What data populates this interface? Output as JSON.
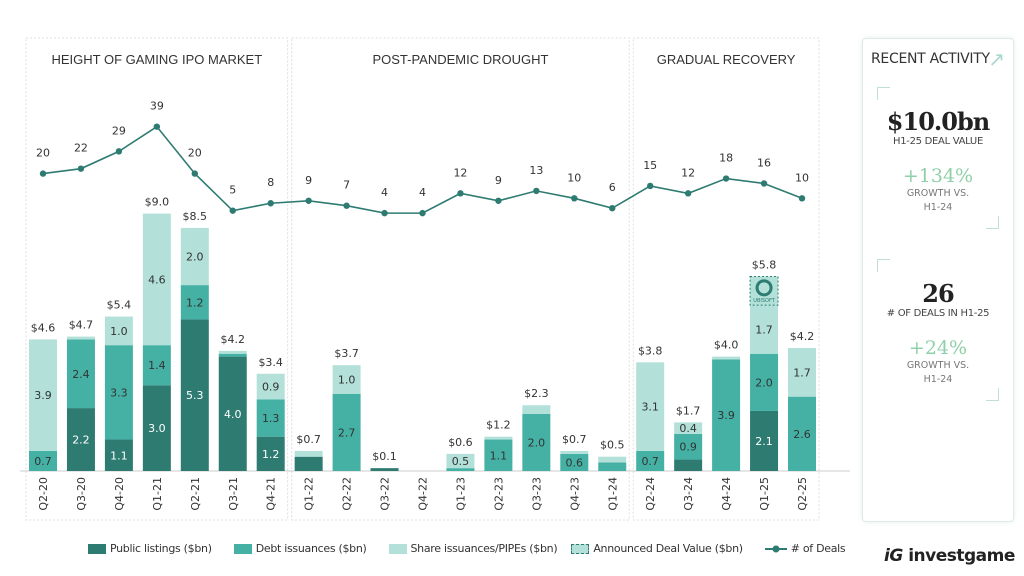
{
  "chart_data": {
    "type": "bar",
    "periods": [
      {
        "title": "HEIGHT OF GAMING IPO MARKET",
        "categories": [
          "Q2-20",
          "Q3-20",
          "Q4-20",
          "Q1-21",
          "Q2-21",
          "Q3-21",
          "Q4-21"
        ]
      },
      {
        "title": "POST-PANDEMIC DROUGHT",
        "categories": [
          "Q1-22",
          "Q2-22",
          "Q3-22",
          "Q4-22",
          "Q1-23",
          "Q2-23",
          "Q3-23",
          "Q4-23",
          "Q1-24"
        ]
      },
      {
        "title": "GRADUAL RECOVERY",
        "categories": [
          "Q2-24",
          "Q3-24",
          "Q4-24",
          "Q1-25",
          "Q2-25"
        ]
      }
    ],
    "categories": [
      "Q2-20",
      "Q3-20",
      "Q4-20",
      "Q1-21",
      "Q2-21",
      "Q3-21",
      "Q4-21",
      "Q1-22",
      "Q2-22",
      "Q3-22",
      "Q4-22",
      "Q1-23",
      "Q2-23",
      "Q3-23",
      "Q4-23",
      "Q1-24",
      "Q2-24",
      "Q3-24",
      "Q4-24",
      "Q1-25",
      "Q2-25"
    ],
    "series": [
      {
        "name": "Public listings ($bn)",
        "color": "#2e7b72",
        "values": [
          0,
          2.2,
          1.1,
          3.0,
          5.3,
          4.0,
          1.2,
          0.5,
          0,
          0.1,
          0,
          0,
          0,
          0,
          0,
          0,
          0,
          0.4,
          0,
          2.1,
          0
        ],
        "labels": [
          null,
          "2.2",
          "1.1",
          "3.0",
          "5.3",
          "4.0",
          "1.2",
          null,
          null,
          null,
          null,
          null,
          null,
          null,
          null,
          null,
          null,
          null,
          null,
          "2.1",
          null
        ]
      },
      {
        "name": "Debt issuances ($bn)",
        "color": "#45b1a5",
        "values": [
          0.7,
          2.4,
          3.3,
          1.4,
          1.2,
          0.1,
          1.3,
          0,
          2.7,
          0,
          0,
          0.1,
          1.1,
          2.0,
          0.6,
          0.3,
          0.7,
          0.9,
          3.9,
          2.0,
          2.6
        ],
        "labels": [
          "0.7",
          "2.4",
          "3.3",
          "1.4",
          "1.2",
          null,
          "1.3",
          null,
          "2.7",
          null,
          null,
          null,
          "1.1",
          "2.0",
          "0.6",
          null,
          "0.7",
          "0.9",
          "3.9",
          "2.0",
          "2.6"
        ]
      },
      {
        "name": "Share issuances/PIPEs ($bn)",
        "color": "#b3e1da",
        "values": [
          3.9,
          0.1,
          1.0,
          4.6,
          2.0,
          0.1,
          0.9,
          0.2,
          1.0,
          0,
          0,
          0.5,
          0.1,
          0.3,
          0.1,
          0.2,
          3.1,
          0.4,
          0.1,
          1.7,
          1.7
        ],
        "labels": [
          "3.9",
          null,
          "1.0",
          "4.6",
          "2.0",
          null,
          "0.9",
          null,
          "1.0",
          null,
          null,
          "0.5",
          null,
          null,
          null,
          null,
          "3.1",
          "0.4",
          null,
          "1.7",
          "1.7"
        ]
      },
      {
        "name": "Announced Deal Value ($bn)",
        "color": "#b3e1da",
        "values": [
          0,
          0,
          0,
          0,
          0,
          0,
          0,
          0,
          0,
          0,
          0,
          0,
          0,
          0,
          0,
          0,
          0,
          0,
          0,
          1.0,
          0
        ],
        "annotation": "UBISOFT"
      }
    ],
    "totals": [
      "$4.6",
      "$4.7",
      "$5.4",
      "$9.0",
      "$8.5",
      "$4.2",
      "$3.4",
      "$0.7",
      "$3.7",
      "$0.1",
      "",
      "$0.6",
      "$1.2",
      "$2.3",
      "$0.7",
      "$0.5",
      "$3.8",
      "$1.7",
      "$4.0",
      "$5.8",
      "$4.2"
    ],
    "line": {
      "name": "# of Deals",
      "color": "#2e7b72",
      "values": [
        20,
        22,
        29,
        39,
        20,
        5,
        8,
        9,
        7,
        4,
        4,
        12,
        9,
        13,
        10,
        6,
        15,
        12,
        18,
        16,
        10
      ]
    },
    "legend_position": "bottom"
  },
  "sidebar": {
    "title": "RECENT ACTIVITY",
    "cards": [
      {
        "value": "$10.0bn",
        "label": "H1-25 DEAL VALUE",
        "growth": "+134%",
        "growth_label_1": "GROWTH VS.",
        "growth_label_2": "H1-24"
      },
      {
        "value": "26",
        "label": "# OF DEALS IN H1-25",
        "growth": "+24%",
        "growth_label_1": "GROWTH VS.",
        "growth_label_2": "H1-24"
      }
    ]
  },
  "logo": "investgame"
}
